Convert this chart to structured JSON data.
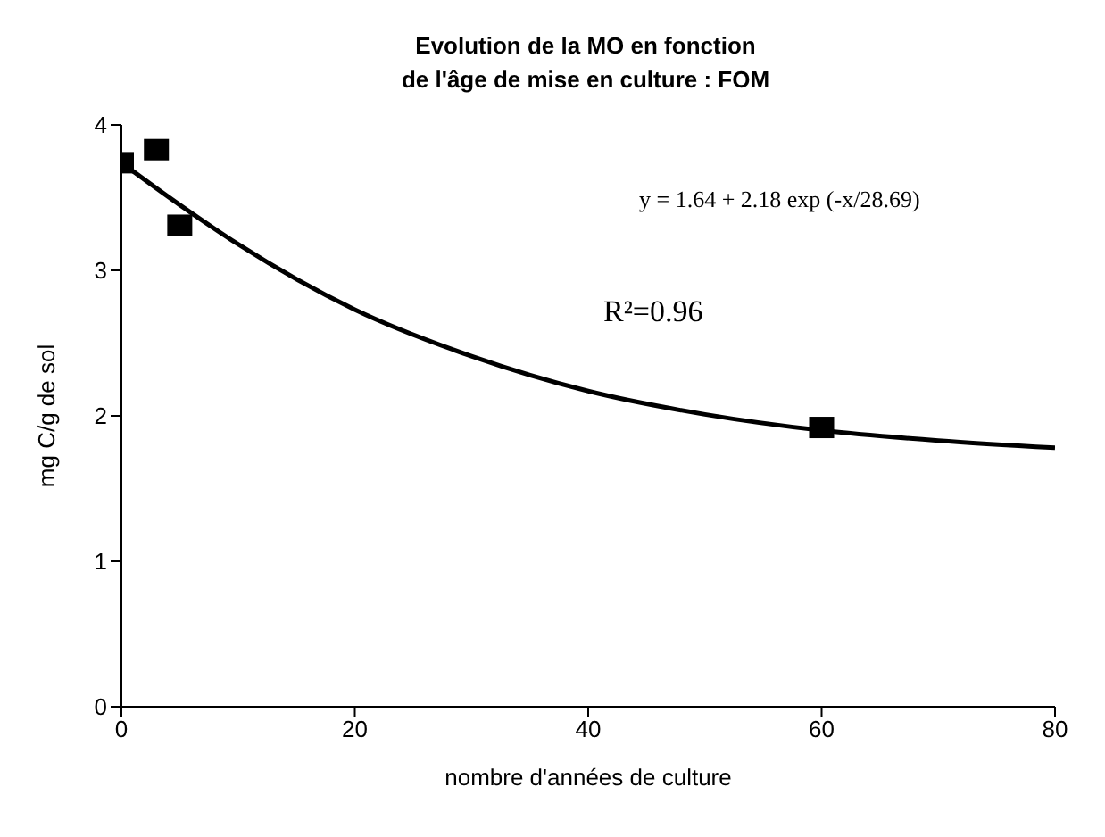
{
  "chart_data": {
    "type": "scatter",
    "title": "Evolution de la MO en fonction\nde l'âge de mise en culture : FOM",
    "xlabel": "nombre d'années de culture",
    "ylabel": "mg C/g de sol",
    "marker": "square",
    "xlim": [
      0,
      80
    ],
    "xticks": [
      0,
      20,
      40,
      60,
      80
    ],
    "ylim": [
      0,
      4
    ],
    "yticks": [
      0,
      1,
      2,
      3,
      4
    ],
    "grid": false,
    "legend": false,
    "series": [
      {
        "color": "#000000",
        "x": [
          0,
          3,
          5,
          60
        ],
        "values": [
          3.74,
          3.83,
          3.31,
          1.92
        ]
      },
      {
        "type": "line",
        "color": "#000000",
        "marker": "none",
        "x": [
          0,
          5,
          10,
          20,
          30,
          40,
          50,
          60,
          70,
          80
        ],
        "values": [
          3.74,
          3.45,
          3.18,
          2.73,
          2.41,
          2.17,
          2.01,
          1.9,
          1.83,
          1.78
        ]
      }
    ],
    "annotations": [
      "y = 1.64 + 2.18 exp (-x/28.69)",
      "R²=0.96"
    ]
  }
}
